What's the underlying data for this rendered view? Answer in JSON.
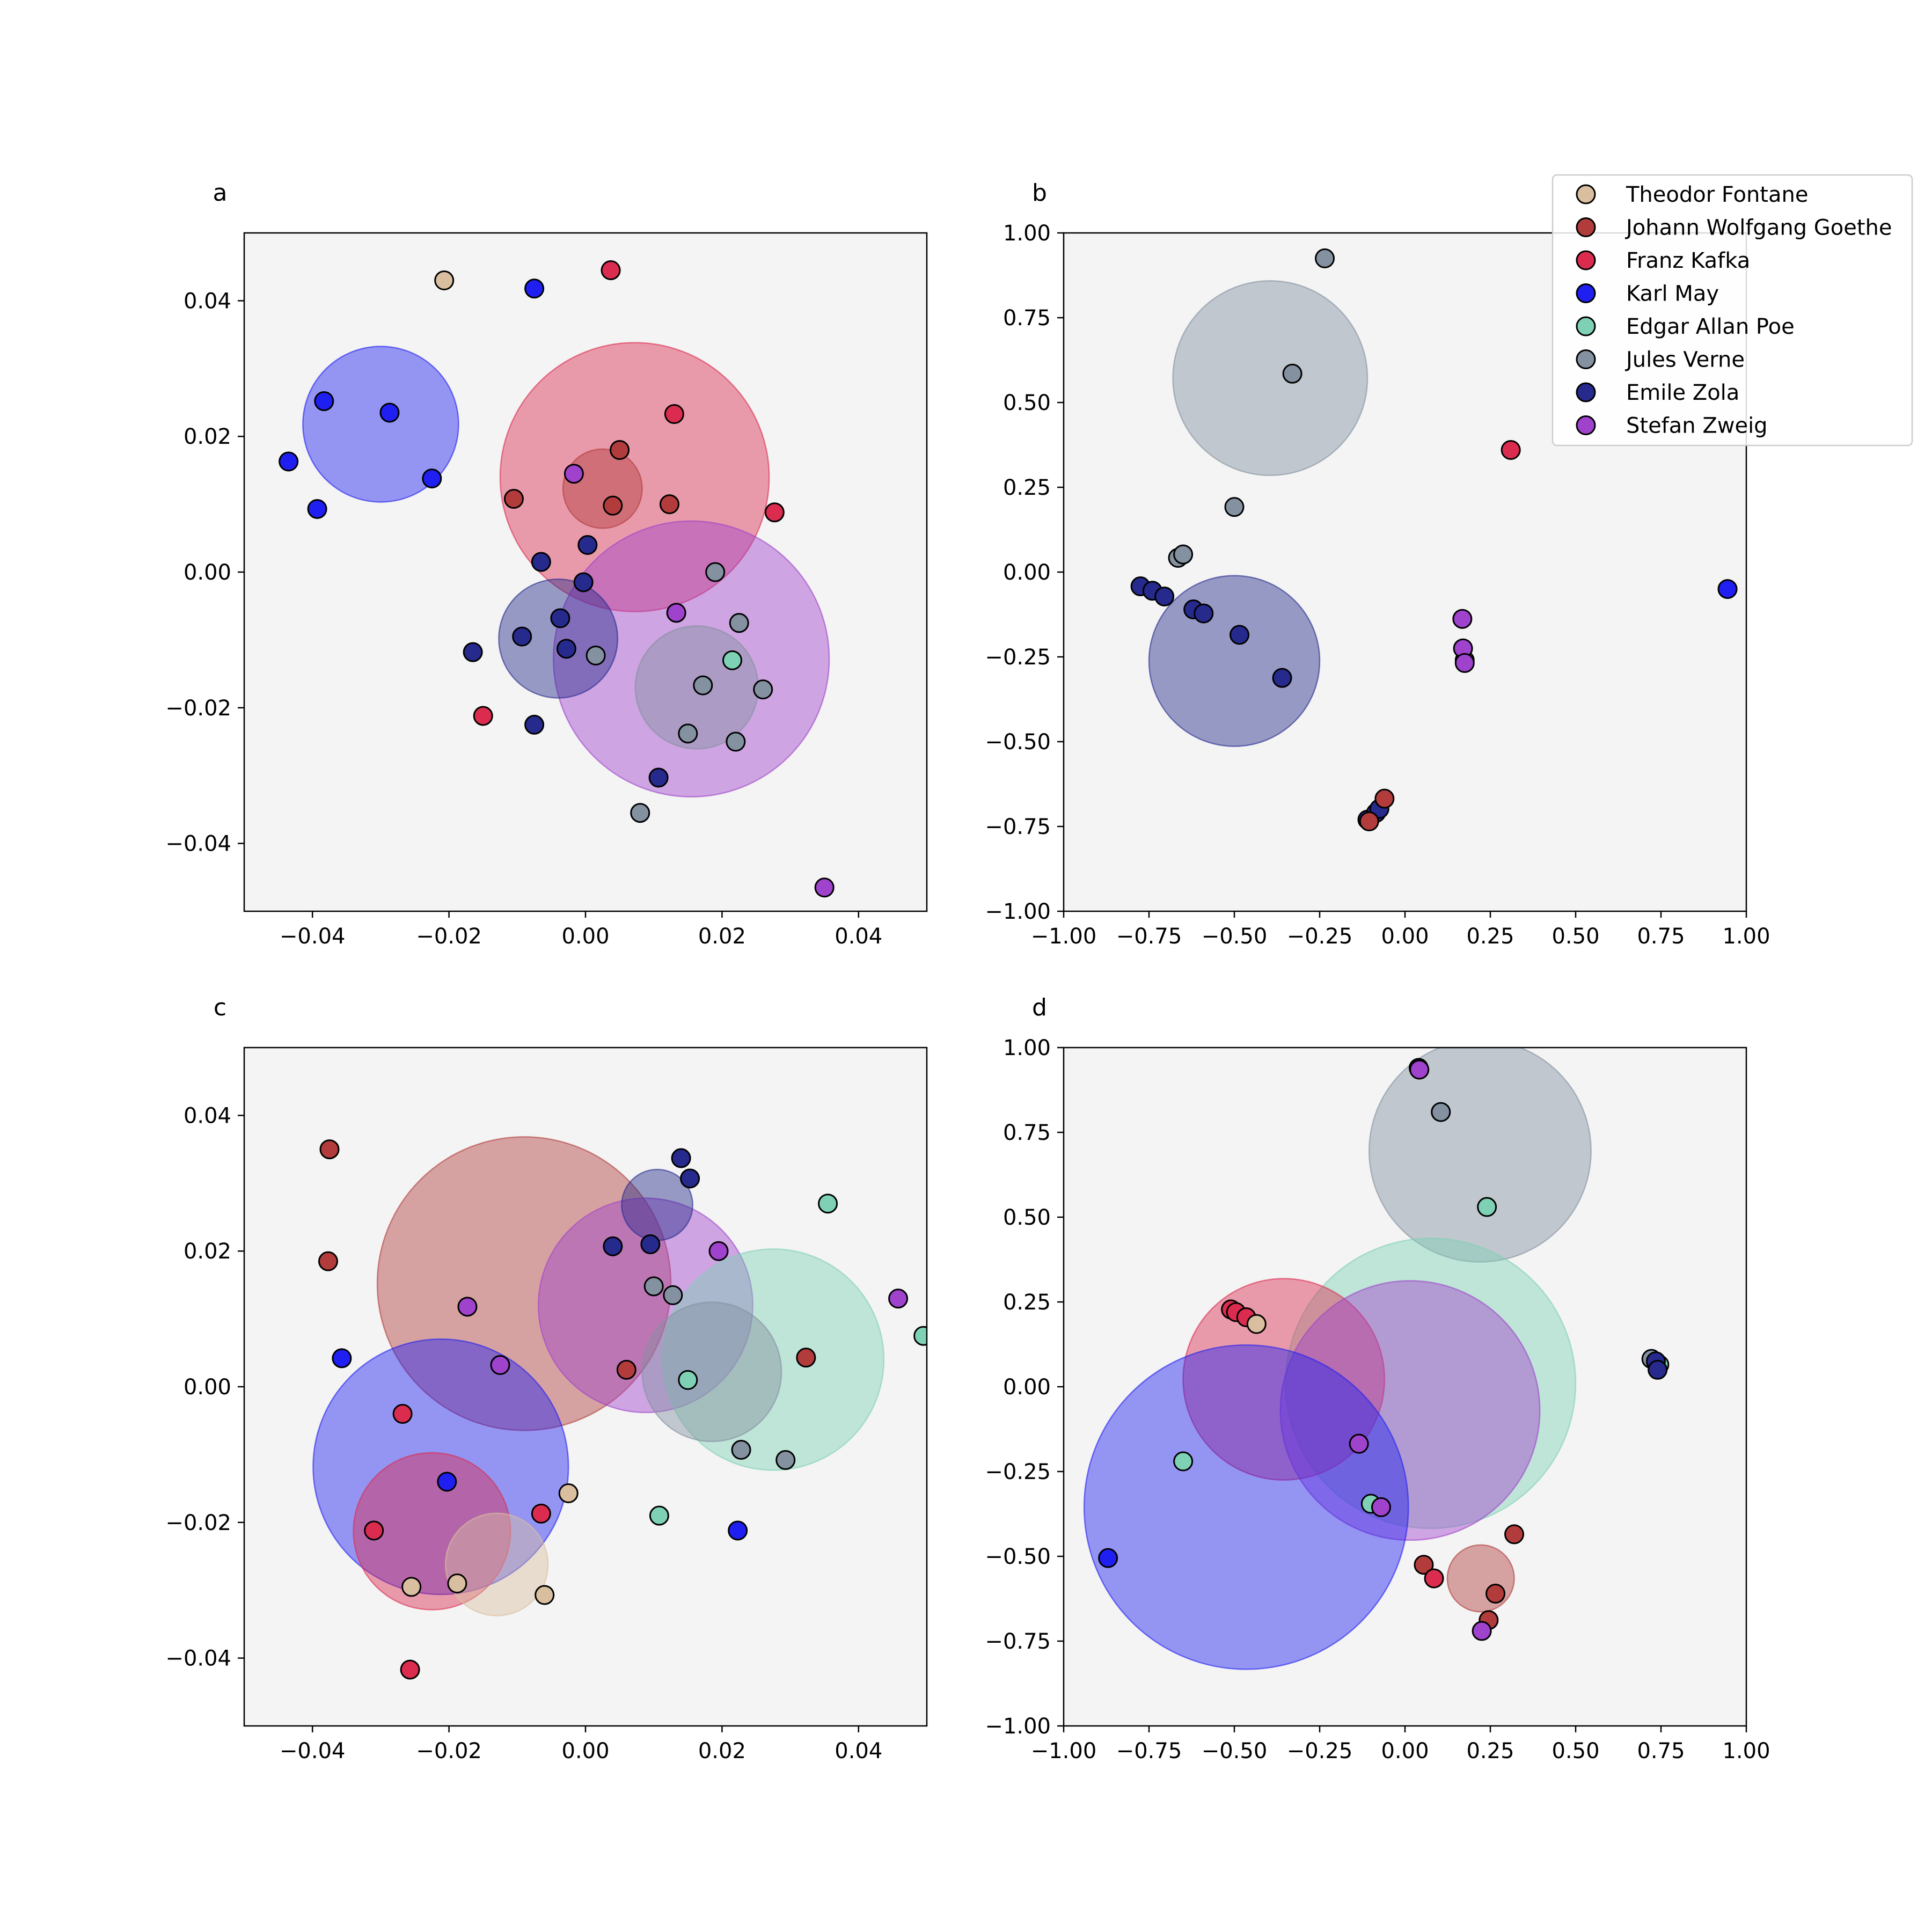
{
  "authors": [
    {
      "name": "Theodor Fontane",
      "color": "#d9bf9f"
    },
    {
      "name": "Johann Wolfgang Goethe",
      "color": "#b23c3c"
    },
    {
      "name": "Franz Kafka",
      "color": "#db2c50"
    },
    {
      "name": "Karl May",
      "color": "#1f1ff2"
    },
    {
      "name": "Edgar Allan Poe",
      "color": "#7fd1b6"
    },
    {
      "name": "Jules Verne",
      "color": "#8391a0"
    },
    {
      "name": "Emile Zola",
      "color": "#262a8c"
    },
    {
      "name": "Stefan Zweig",
      "color": "#9f42cc"
    }
  ],
  "chart_data": [
    {
      "type": "scatter",
      "title": "a",
      "xlim": [
        -0.05,
        0.05
      ],
      "ylim": [
        -0.05,
        0.05
      ],
      "xticks": [
        "−0.04",
        "−0.02",
        "0.00",
        "0.02",
        "0.04"
      ],
      "yticks": [
        "0.04",
        "0.02",
        "0.00",
        "−0.02",
        "−0.04"
      ],
      "xtick_values": [
        -0.04,
        -0.02,
        0.0,
        0.02,
        0.04
      ],
      "ytick_values": [
        0.04,
        0.02,
        0.0,
        -0.02,
        -0.04
      ],
      "clusters": [
        {
          "author": "Karl May",
          "x": -0.03,
          "y": 0.0218,
          "r": 0.0114
        },
        {
          "author": "Franz Kafka",
          "x": 0.0072,
          "y": 0.014,
          "r": 0.0197
        },
        {
          "author": "Johann Wolfgang Goethe",
          "x": 0.0025,
          "y": 0.0123,
          "r": 0.0058
        },
        {
          "author": "Stefan Zweig",
          "x": 0.0155,
          "y": -0.0128,
          "r": 0.0202
        },
        {
          "author": "Emile Zola",
          "x": -0.004,
          "y": -0.0098,
          "r": 0.0087
        },
        {
          "author": "Jules Verne",
          "x": 0.0163,
          "y": -0.017,
          "r": 0.009
        }
      ],
      "points": [
        {
          "author": "Theodor Fontane",
          "x": -0.0207,
          "y": 0.043
        },
        {
          "author": "Karl May",
          "x": -0.0075,
          "y": 0.0418
        },
        {
          "author": "Karl May",
          "x": -0.0383,
          "y": 0.0252
        },
        {
          "author": "Karl May",
          "x": -0.0287,
          "y": 0.0235
        },
        {
          "author": "Karl May",
          "x": -0.0435,
          "y": 0.0163
        },
        {
          "author": "Karl May",
          "x": -0.0225,
          "y": 0.0138
        },
        {
          "author": "Karl May",
          "x": -0.0393,
          "y": 0.0093
        },
        {
          "author": "Franz Kafka",
          "x": 0.0037,
          "y": 0.0445
        },
        {
          "author": "Franz Kafka",
          "x": 0.013,
          "y": 0.0233
        },
        {
          "author": "Franz Kafka",
          "x": 0.0277,
          "y": 0.0088
        },
        {
          "author": "Franz Kafka",
          "x": -0.015,
          "y": -0.0212
        },
        {
          "author": "Johann Wolfgang Goethe",
          "x": 0.005,
          "y": 0.018
        },
        {
          "author": "Johann Wolfgang Goethe",
          "x": -0.0105,
          "y": 0.0108
        },
        {
          "author": "Johann Wolfgang Goethe",
          "x": 0.004,
          "y": 0.0098
        },
        {
          "author": "Johann Wolfgang Goethe",
          "x": 0.0123,
          "y": 0.01
        },
        {
          "author": "Stefan Zweig",
          "x": -0.0017,
          "y": 0.0145
        },
        {
          "author": "Stefan Zweig",
          "x": 0.0133,
          "y": -0.006
        },
        {
          "author": "Stefan Zweig",
          "x": 0.035,
          "y": -0.0465
        },
        {
          "author": "Emile Zola",
          "x": 0.0003,
          "y": 0.004
        },
        {
          "author": "Emile Zola",
          "x": -0.0065,
          "y": 0.0015
        },
        {
          "author": "Emile Zola",
          "x": -0.0003,
          "y": -0.0015
        },
        {
          "author": "Emile Zola",
          "x": -0.0037,
          "y": -0.0068
        },
        {
          "author": "Emile Zola",
          "x": -0.0165,
          "y": -0.0118
        },
        {
          "author": "Emile Zola",
          "x": -0.0093,
          "y": -0.0095
        },
        {
          "author": "Emile Zola",
          "x": -0.0028,
          "y": -0.0113
        },
        {
          "author": "Emile Zola",
          "x": -0.0075,
          "y": -0.0225
        },
        {
          "author": "Emile Zola",
          "x": 0.0107,
          "y": -0.0303
        },
        {
          "author": "Jules Verne",
          "x": 0.019,
          "y": 0.0
        },
        {
          "author": "Jules Verne",
          "x": 0.0225,
          "y": -0.0075
        },
        {
          "author": "Jules Verne",
          "x": 0.0015,
          "y": -0.0123
        },
        {
          "author": "Jules Verne",
          "x": 0.0172,
          "y": -0.0167
        },
        {
          "author": "Jules Verne",
          "x": 0.026,
          "y": -0.0173
        },
        {
          "author": "Jules Verne",
          "x": 0.015,
          "y": -0.0238
        },
        {
          "author": "Jules Verne",
          "x": 0.022,
          "y": -0.025
        },
        {
          "author": "Jules Verne",
          "x": 0.008,
          "y": -0.0355
        },
        {
          "author": "Edgar Allan Poe",
          "x": 0.0215,
          "y": -0.013
        }
      ]
    },
    {
      "type": "scatter",
      "title": "b",
      "xlim": [
        -1.0,
        1.0
      ],
      "ylim": [
        -1.0,
        1.0
      ],
      "xticks": [
        "−1.00",
        "−0.75",
        "−0.50",
        "−0.25",
        "0.00",
        "0.25",
        "0.50",
        "0.75",
        "1.00"
      ],
      "yticks": [
        "1.00",
        "0.75",
        "0.50",
        "0.25",
        "0.00",
        "−0.25",
        "−0.50",
        "−0.75",
        "−1.00"
      ],
      "xtick_values": [
        -1.0,
        -0.75,
        -0.5,
        -0.25,
        0.0,
        0.25,
        0.5,
        0.75,
        1.0
      ],
      "ytick_values": [
        1.0,
        0.75,
        0.5,
        0.25,
        0.0,
        -0.25,
        -0.5,
        -0.75,
        -1.0
      ],
      "clusters": [
        {
          "author": "Jules Verne",
          "x": -0.395,
          "y": 0.572,
          "r": 0.285
        },
        {
          "author": "Emile Zola",
          "x": -0.5,
          "y": -0.262,
          "r": 0.25
        }
      ],
      "points": [
        {
          "author": "Jules Verne",
          "x": -0.235,
          "y": 0.925
        },
        {
          "author": "Jules Verne",
          "x": -0.33,
          "y": 0.585
        },
        {
          "author": "Jules Verne",
          "x": -0.5,
          "y": 0.192
        },
        {
          "author": "Jules Verne",
          "x": -0.665,
          "y": 0.042
        },
        {
          "author": "Jules Verne",
          "x": -0.65,
          "y": 0.052
        },
        {
          "author": "Jules Verne",
          "x": 0.175,
          "y": -0.26
        },
        {
          "author": "Franz Kafka",
          "x": 0.31,
          "y": 0.36
        },
        {
          "author": "Karl May",
          "x": 0.945,
          "y": -0.05
        },
        {
          "author": "Emile Zola",
          "x": -0.775,
          "y": -0.042
        },
        {
          "author": "Emile Zola",
          "x": -0.74,
          "y": -0.055
        },
        {
          "author": "Emile Zola",
          "x": -0.705,
          "y": -0.072
        },
        {
          "author": "Emile Zola",
          "x": -0.62,
          "y": -0.11
        },
        {
          "author": "Emile Zola",
          "x": -0.59,
          "y": -0.122
        },
        {
          "author": "Emile Zola",
          "x": -0.485,
          "y": -0.185
        },
        {
          "author": "Emile Zola",
          "x": -0.36,
          "y": -0.312
        },
        {
          "author": "Emile Zola",
          "x": -0.11,
          "y": -0.73
        },
        {
          "author": "Emile Zola",
          "x": -0.085,
          "y": -0.71
        },
        {
          "author": "Emile Zola",
          "x": -0.075,
          "y": -0.698
        },
        {
          "author": "Johann Wolfgang Goethe",
          "x": -0.06,
          "y": -0.668
        },
        {
          "author": "Johann Wolfgang Goethe",
          "x": -0.105,
          "y": -0.735
        },
        {
          "author": "Stefan Zweig",
          "x": 0.168,
          "y": -0.138
        },
        {
          "author": "Stefan Zweig",
          "x": 0.17,
          "y": -0.225
        },
        {
          "author": "Stefan Zweig",
          "x": 0.175,
          "y": -0.268
        }
      ]
    },
    {
      "type": "scatter",
      "title": "c",
      "xlim": [
        -0.05,
        0.05
      ],
      "ylim": [
        -0.05,
        0.05
      ],
      "xticks": [
        "−0.04",
        "−0.02",
        "0.00",
        "0.02",
        "0.04"
      ],
      "yticks": [
        "0.04",
        "0.02",
        "0.00",
        "−0.02",
        "−0.04"
      ],
      "xtick_values": [
        -0.04,
        -0.02,
        0.0,
        0.02,
        0.04
      ],
      "ytick_values": [
        0.04,
        0.02,
        0.0,
        -0.02,
        -0.04
      ],
      "clusters": [
        {
          "author": "Johann Wolfgang Goethe",
          "x": -0.009,
          "y": 0.0152,
          "r": 0.0215
        },
        {
          "author": "Karl May",
          "x": -0.0212,
          "y": -0.0118,
          "r": 0.0187
        },
        {
          "author": "Stefan Zweig",
          "x": 0.0088,
          "y": 0.012,
          "r": 0.0157
        },
        {
          "author": "Edgar Allan Poe",
          "x": 0.0275,
          "y": 0.004,
          "r": 0.0162
        },
        {
          "author": "Jules Verne",
          "x": 0.0185,
          "y": 0.0022,
          "r": 0.0102
        },
        {
          "author": "Emile Zola",
          "x": 0.0105,
          "y": 0.0268,
          "r": 0.0052
        },
        {
          "author": "Franz Kafka",
          "x": -0.0225,
          "y": -0.0213,
          "r": 0.0115
        },
        {
          "author": "Theodor Fontane",
          "x": -0.013,
          "y": -0.0262,
          "r": 0.0075
        }
      ],
      "points": [
        {
          "author": "Johann Wolfgang Goethe",
          "x": -0.0375,
          "y": 0.035
        },
        {
          "author": "Johann Wolfgang Goethe",
          "x": -0.0377,
          "y": 0.0185
        },
        {
          "author": "Johann Wolfgang Goethe",
          "x": 0.006,
          "y": 0.0025
        },
        {
          "author": "Johann Wolfgang Goethe",
          "x": 0.0323,
          "y": 0.0043
        },
        {
          "author": "Stefan Zweig",
          "x": -0.0173,
          "y": 0.0118
        },
        {
          "author": "Stefan Zweig",
          "x": -0.0125,
          "y": 0.0032
        },
        {
          "author": "Stefan Zweig",
          "x": 0.0195,
          "y": 0.02
        },
        {
          "author": "Stefan Zweig",
          "x": 0.0458,
          "y": 0.013
        },
        {
          "author": "Emile Zola",
          "x": 0.014,
          "y": 0.0337
        },
        {
          "author": "Emile Zola",
          "x": 0.0153,
          "y": 0.0307
        },
        {
          "author": "Emile Zola",
          "x": 0.004,
          "y": 0.0207
        },
        {
          "author": "Emile Zola",
          "x": 0.0095,
          "y": 0.021
        },
        {
          "author": "Jules Verne",
          "x": 0.01,
          "y": 0.0148
        },
        {
          "author": "Jules Verne",
          "x": 0.0128,
          "y": 0.0135
        },
        {
          "author": "Jules Verne",
          "x": 0.0228,
          "y": -0.0093
        },
        {
          "author": "Jules Verne",
          "x": 0.0293,
          "y": -0.0108
        },
        {
          "author": "Edgar Allan Poe",
          "x": 0.0355,
          "y": 0.027
        },
        {
          "author": "Edgar Allan Poe",
          "x": 0.015,
          "y": 0.001
        },
        {
          "author": "Edgar Allan Poe",
          "x": 0.0108,
          "y": -0.019
        },
        {
          "author": "Edgar Allan Poe",
          "x": 0.0495,
          "y": 0.0075
        },
        {
          "author": "Karl May",
          "x": -0.0357,
          "y": 0.0042
        },
        {
          "author": "Karl May",
          "x": -0.0203,
          "y": -0.014
        },
        {
          "author": "Karl May",
          "x": 0.0223,
          "y": -0.0212
        },
        {
          "author": "Franz Kafka",
          "x": -0.0268,
          "y": -0.004
        },
        {
          "author": "Franz Kafka",
          "x": -0.0065,
          "y": -0.0187
        },
        {
          "author": "Franz Kafka",
          "x": -0.031,
          "y": -0.0212
        },
        {
          "author": "Franz Kafka",
          "x": -0.0257,
          "y": -0.0417
        },
        {
          "author": "Theodor Fontane",
          "x": -0.0025,
          "y": -0.0157
        },
        {
          "author": "Theodor Fontane",
          "x": -0.0255,
          "y": -0.0295
        },
        {
          "author": "Theodor Fontane",
          "x": -0.0188,
          "y": -0.029
        },
        {
          "author": "Theodor Fontane",
          "x": -0.006,
          "y": -0.0307
        }
      ]
    },
    {
      "type": "scatter",
      "title": "d",
      "xlim": [
        -1.0,
        1.0
      ],
      "ylim": [
        -1.0,
        1.0
      ],
      "xticks": [
        "−1.00",
        "−0.75",
        "−0.50",
        "−0.25",
        "0.00",
        "0.25",
        "0.50",
        "0.75",
        "1.00"
      ],
      "yticks": [
        "1.00",
        "0.75",
        "0.50",
        "0.25",
        "0.00",
        "−0.25",
        "−0.50",
        "−0.75",
        "−1.00"
      ],
      "xtick_values": [
        -1.0,
        -0.75,
        -0.5,
        -0.25,
        0.0,
        0.25,
        0.5,
        0.75,
        1.0
      ],
      "ytick_values": [
        1.0,
        0.75,
        0.5,
        0.25,
        0.0,
        -0.25,
        -0.5,
        -0.75,
        -1.0
      ],
      "clusters": [
        {
          "author": "Jules Verne",
          "x": 0.22,
          "y": 0.695,
          "r": 0.325
        },
        {
          "author": "Edgar Allan Poe",
          "x": 0.075,
          "y": 0.01,
          "r": 0.425
        },
        {
          "author": "Franz Kafka",
          "x": -0.355,
          "y": 0.022,
          "r": 0.295
        },
        {
          "author": "Stefan Zweig",
          "x": 0.015,
          "y": -0.07,
          "r": 0.38
        },
        {
          "author": "Karl May",
          "x": -0.465,
          "y": -0.355,
          "r": 0.475
        },
        {
          "author": "Johann Wolfgang Goethe",
          "x": 0.222,
          "y": -0.565,
          "r": 0.098
        }
      ],
      "points": [
        {
          "author": "Emile Zola",
          "x": 0.04,
          "y": 0.94
        },
        {
          "author": "Stefan Zweig",
          "x": 0.042,
          "y": 0.935
        },
        {
          "author": "Jules Verne",
          "x": 0.105,
          "y": 0.81
        },
        {
          "author": "Edgar Allan Poe",
          "x": 0.24,
          "y": 0.53
        },
        {
          "author": "Franz Kafka",
          "x": -0.51,
          "y": 0.228
        },
        {
          "author": "Franz Kafka",
          "x": -0.495,
          "y": 0.22
        },
        {
          "author": "Franz Kafka",
          "x": -0.465,
          "y": 0.205
        },
        {
          "author": "Theodor Fontane",
          "x": -0.435,
          "y": 0.185
        },
        {
          "author": "Edgar Allan Poe",
          "x": 0.745,
          "y": 0.065
        },
        {
          "author": "Jules Verne",
          "x": 0.722,
          "y": 0.082
        },
        {
          "author": "Emile Zola",
          "x": 0.735,
          "y": 0.075
        },
        {
          "author": "Emile Zola",
          "x": 0.74,
          "y": 0.05
        },
        {
          "author": "Stefan Zweig",
          "x": -0.135,
          "y": -0.168
        },
        {
          "author": "Edgar Allan Poe",
          "x": -0.65,
          "y": -0.22
        },
        {
          "author": "Edgar Allan Poe",
          "x": -0.1,
          "y": -0.345
        },
        {
          "author": "Stefan Zweig",
          "x": -0.07,
          "y": -0.355
        },
        {
          "author": "Karl May",
          "x": -0.87,
          "y": -0.505
        },
        {
          "author": "Johann Wolfgang Goethe",
          "x": 0.32,
          "y": -0.435
        },
        {
          "author": "Johann Wolfgang Goethe",
          "x": 0.055,
          "y": -0.525
        },
        {
          "author": "Franz Kafka",
          "x": 0.085,
          "y": -0.565
        },
        {
          "author": "Johann Wolfgang Goethe",
          "x": 0.265,
          "y": -0.61
        },
        {
          "author": "Johann Wolfgang Goethe",
          "x": 0.245,
          "y": -0.688
        },
        {
          "author": "Stefan Zweig",
          "x": 0.225,
          "y": -0.72
        }
      ]
    }
  ]
}
